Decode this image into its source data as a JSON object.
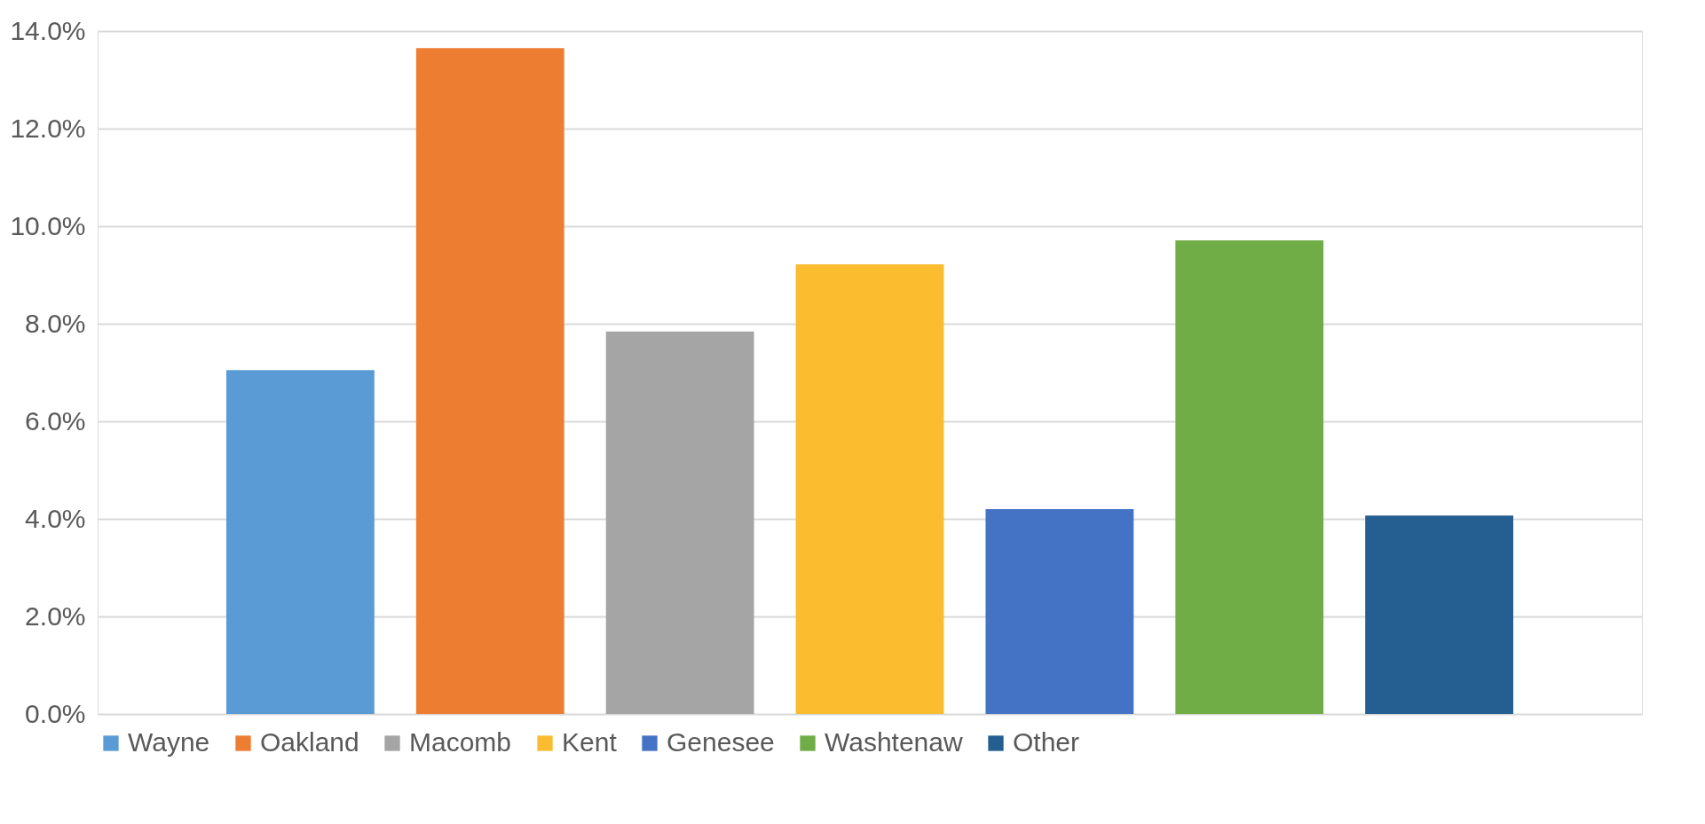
{
  "chart_data": {
    "type": "bar",
    "categories": [
      null
    ],
    "series": [
      {
        "name": "Wayne",
        "color": "#5b9bd5",
        "values": [
          7.05
        ]
      },
      {
        "name": "Oakland",
        "color": "#ed7d31",
        "values": [
          13.65
        ]
      },
      {
        "name": "Macomb",
        "color": "#a5a5a5",
        "values": [
          7.84
        ]
      },
      {
        "name": "Kent",
        "color": "#fbbc2f",
        "values": [
          9.22
        ]
      },
      {
        "name": "Genesee",
        "color": "#4472c4",
        "values": [
          4.2
        ]
      },
      {
        "name": "Washtenaw",
        "color": "#70ad47",
        "values": [
          9.71
        ]
      },
      {
        "name": "Other",
        "color": "#255e91",
        "values": [
          4.07
        ]
      }
    ],
    "ylim": [
      0,
      14
    ],
    "yticks": [
      {
        "value": 0,
        "label": "0.0%"
      },
      {
        "value": 2,
        "label": "2.0%"
      },
      {
        "value": 4,
        "label": "4.0%"
      },
      {
        "value": 6,
        "label": "6.0%"
      },
      {
        "value": 8,
        "label": "8.0%"
      },
      {
        "value": 10,
        "label": "10.0%"
      },
      {
        "value": 12,
        "label": "12.0%"
      },
      {
        "value": 14,
        "label": "14.0%"
      }
    ],
    "grid": "y",
    "legend": "bottom",
    "tick_labels": "y"
  }
}
